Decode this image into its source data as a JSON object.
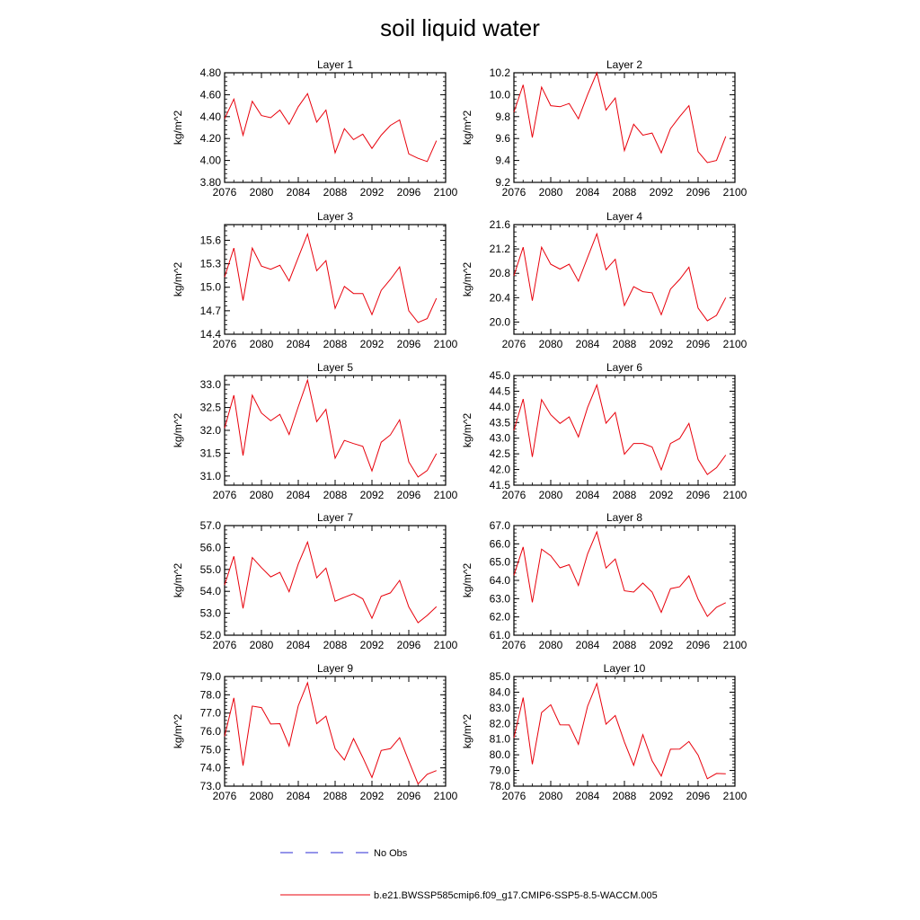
{
  "page_title": "soil liquid water",
  "legend": {
    "obs_label": "No Obs",
    "model_label": "b.e21.BWSSP585cmip6.f09_g17.CMIP6-SSP5-8.5-WACCM.005",
    "obs_color": "#2b2bd6",
    "model_color": "#e8000b"
  },
  "chart_data": [
    {
      "type": "line",
      "title": "Layer 1",
      "ylabel": "kg/m^2",
      "xlim": [
        2076,
        2100
      ],
      "ylim": [
        3.8,
        4.8
      ],
      "xticks": [
        "2076",
        "2080",
        "2084",
        "2088",
        "2092",
        "2096",
        "2100"
      ],
      "yticks": [
        "3.80",
        "4.00",
        "4.20",
        "4.40",
        "4.60",
        "4.80"
      ],
      "x": [
        2076,
        2077,
        2078,
        2079,
        2080,
        2081,
        2082,
        2083,
        2084,
        2085,
        2086,
        2087,
        2088,
        2089,
        2090,
        2091,
        2092,
        2093,
        2094,
        2095,
        2096,
        2097,
        2098,
        2099
      ],
      "series": [
        {
          "values": [
            4.38,
            4.56,
            4.23,
            4.54,
            4.41,
            4.39,
            4.46,
            4.33,
            4.49,
            4.61,
            4.35,
            4.46,
            4.07,
            4.29,
            4.19,
            4.24,
            4.11,
            4.23,
            4.32,
            4.37,
            4.06,
            4.02,
            3.99,
            4.18
          ]
        }
      ]
    },
    {
      "type": "line",
      "title": "Layer 2",
      "ylabel": "kg/m^2",
      "xlim": [
        2076,
        2100
      ],
      "ylim": [
        9.2,
        10.2
      ],
      "xticks": [
        "2076",
        "2080",
        "2084",
        "2088",
        "2092",
        "2096",
        "2100"
      ],
      "yticks": [
        "9.2",
        "9.4",
        "9.6",
        "9.8",
        "10.0",
        "10.2"
      ],
      "x": [
        2076,
        2077,
        2078,
        2079,
        2080,
        2081,
        2082,
        2083,
        2084,
        2085,
        2086,
        2087,
        2088,
        2089,
        2090,
        2091,
        2092,
        2093,
        2094,
        2095,
        2096,
        2097,
        2098,
        2099
      ],
      "series": [
        {
          "values": [
            9.84,
            10.09,
            9.61,
            10.07,
            9.9,
            9.89,
            9.92,
            9.78,
            10.0,
            10.2,
            9.86,
            9.97,
            9.49,
            9.73,
            9.63,
            9.65,
            9.47,
            9.69,
            9.8,
            9.9,
            9.48,
            9.38,
            9.4,
            9.62
          ]
        }
      ]
    },
    {
      "type": "line",
      "title": "Layer 3",
      "ylabel": "kg/m^2",
      "xlim": [
        2076,
        2100
      ],
      "ylim": [
        14.4,
        15.8
      ],
      "xticks": [
        "2076",
        "2080",
        "2084",
        "2088",
        "2092",
        "2096",
        "2100"
      ],
      "yticks": [
        "14.4",
        "14.7",
        "15.0",
        "15.3",
        "15.6"
      ],
      "x": [
        2076,
        2077,
        2078,
        2079,
        2080,
        2081,
        2082,
        2083,
        2084,
        2085,
        2086,
        2087,
        2088,
        2089,
        2090,
        2091,
        2092,
        2093,
        2094,
        2095,
        2096,
        2097,
        2098,
        2099
      ],
      "series": [
        {
          "values": [
            15.13,
            15.5,
            14.83,
            15.5,
            15.27,
            15.23,
            15.28,
            15.08,
            15.38,
            15.68,
            15.21,
            15.34,
            14.73,
            15.01,
            14.92,
            14.92,
            14.65,
            14.96,
            15.1,
            15.26,
            14.7,
            14.55,
            14.6,
            14.86
          ]
        }
      ]
    },
    {
      "type": "line",
      "title": "Layer 4",
      "ylabel": "kg/m^2",
      "xlim": [
        2076,
        2100
      ],
      "ylim": [
        19.8,
        21.6
      ],
      "xticks": [
        "2076",
        "2080",
        "2084",
        "2088",
        "2092",
        "2096",
        "2100"
      ],
      "yticks": [
        "20.0",
        "20.4",
        "20.8",
        "21.2",
        "21.6"
      ],
      "x": [
        2076,
        2077,
        2078,
        2079,
        2080,
        2081,
        2082,
        2083,
        2084,
        2085,
        2086,
        2087,
        2088,
        2089,
        2090,
        2091,
        2092,
        2093,
        2094,
        2095,
        2096,
        2097,
        2098,
        2099
      ],
      "series": [
        {
          "values": [
            20.76,
            21.23,
            20.35,
            21.23,
            20.95,
            20.87,
            20.95,
            20.67,
            21.06,
            21.45,
            20.86,
            21.03,
            20.27,
            20.58,
            20.5,
            20.48,
            20.12,
            20.54,
            20.7,
            20.9,
            20.23,
            20.02,
            20.11,
            20.4
          ]
        }
      ]
    },
    {
      "type": "line",
      "title": "Layer 5",
      "ylabel": "kg/m^2",
      "xlim": [
        2076,
        2100
      ],
      "ylim": [
        30.8,
        33.2
      ],
      "xticks": [
        "2076",
        "2080",
        "2084",
        "2088",
        "2092",
        "2096",
        "2100"
      ],
      "yticks": [
        "31.0",
        "31.5",
        "32.0",
        "32.5",
        "33.0"
      ],
      "x": [
        2076,
        2077,
        2078,
        2079,
        2080,
        2081,
        2082,
        2083,
        2084,
        2085,
        2086,
        2087,
        2088,
        2089,
        2090,
        2091,
        2092,
        2093,
        2094,
        2095,
        2096,
        2097,
        2098,
        2099
      ],
      "series": [
        {
          "values": [
            32.05,
            32.77,
            31.45,
            32.77,
            32.38,
            32.21,
            32.35,
            31.91,
            32.52,
            33.1,
            32.19,
            32.46,
            31.39,
            31.78,
            31.71,
            31.65,
            31.11,
            31.74,
            31.9,
            32.23,
            31.31,
            30.98,
            31.12,
            31.49
          ]
        }
      ]
    },
    {
      "type": "line",
      "title": "Layer 6",
      "ylabel": "kg/m^2",
      "xlim": [
        2076,
        2100
      ],
      "ylim": [
        41.5,
        45.0
      ],
      "xticks": [
        "2076",
        "2080",
        "2084",
        "2088",
        "2092",
        "2096",
        "2100"
      ],
      "yticks": [
        "41.5",
        "42.0",
        "42.5",
        "43.0",
        "43.5",
        "44.0",
        "44.5",
        "45.0"
      ],
      "x": [
        2076,
        2077,
        2078,
        2079,
        2080,
        2081,
        2082,
        2083,
        2084,
        2085,
        2086,
        2087,
        2088,
        2089,
        2090,
        2091,
        2092,
        2093,
        2094,
        2095,
        2096,
        2097,
        2098,
        2099
      ],
      "series": [
        {
          "values": [
            43.25,
            44.25,
            42.4,
            44.23,
            43.75,
            43.47,
            43.68,
            43.04,
            43.98,
            44.7,
            43.48,
            43.82,
            42.49,
            42.83,
            42.83,
            42.72,
            41.99,
            42.83,
            42.99,
            43.47,
            42.32,
            41.84,
            42.06,
            42.46
          ]
        }
      ]
    },
    {
      "type": "line",
      "title": "Layer 7",
      "ylabel": "kg/m^2",
      "xlim": [
        2076,
        2100
      ],
      "ylim": [
        52.0,
        57.0
      ],
      "xticks": [
        "2076",
        "2080",
        "2084",
        "2088",
        "2092",
        "2096",
        "2100"
      ],
      "yticks": [
        "52.0",
        "53.0",
        "54.0",
        "55.0",
        "56.0",
        "57.0"
      ],
      "x": [
        2076,
        2077,
        2078,
        2079,
        2080,
        2081,
        2082,
        2083,
        2084,
        2085,
        2086,
        2087,
        2088,
        2089,
        2090,
        2091,
        2092,
        2093,
        2094,
        2095,
        2096,
        2097,
        2098,
        2099
      ],
      "series": [
        {
          "values": [
            54.29,
            55.6,
            53.22,
            55.54,
            55.08,
            54.66,
            54.87,
            53.98,
            55.25,
            56.25,
            54.62,
            55.06,
            53.55,
            53.73,
            53.89,
            53.66,
            52.77,
            53.78,
            53.93,
            54.5,
            53.29,
            52.57,
            52.9,
            53.3
          ]
        }
      ]
    },
    {
      "type": "line",
      "title": "Layer 8",
      "ylabel": "kg/m^2",
      "xlim": [
        2076,
        2100
      ],
      "ylim": [
        61.0,
        67.0
      ],
      "xticks": [
        "2076",
        "2080",
        "2084",
        "2088",
        "2092",
        "2096",
        "2100"
      ],
      "yticks": [
        "61.0",
        "62.0",
        "63.0",
        "64.0",
        "65.0",
        "66.0",
        "67.0"
      ],
      "x": [
        2076,
        2077,
        2078,
        2079,
        2080,
        2081,
        2082,
        2083,
        2084,
        2085,
        2086,
        2087,
        2088,
        2089,
        2090,
        2091,
        2092,
        2093,
        2094,
        2095,
        2096,
        2097,
        2098,
        2099
      ],
      "series": [
        {
          "values": [
            64.28,
            65.83,
            62.8,
            65.71,
            65.35,
            64.69,
            64.86,
            63.72,
            65.45,
            66.65,
            64.68,
            65.17,
            63.43,
            63.36,
            63.85,
            63.36,
            62.25,
            63.55,
            63.65,
            64.25,
            62.97,
            62.03,
            62.53,
            62.78
          ]
        }
      ]
    },
    {
      "type": "line",
      "title": "Layer 9",
      "ylabel": "kg/m^2",
      "xlim": [
        2076,
        2100
      ],
      "ylim": [
        73.0,
        79.0
      ],
      "xticks": [
        "2076",
        "2080",
        "2084",
        "2088",
        "2092",
        "2096",
        "2100"
      ],
      "yticks": [
        "73.0",
        "74.0",
        "75.0",
        "76.0",
        "77.0",
        "78.0",
        "79.0"
      ],
      "x": [
        2076,
        2077,
        2078,
        2079,
        2080,
        2081,
        2082,
        2083,
        2084,
        2085,
        2086,
        2087,
        2088,
        2089,
        2090,
        2091,
        2092,
        2093,
        2094,
        2095,
        2096,
        2097,
        2098,
        2099
      ],
      "series": [
        {
          "values": [
            75.73,
            77.83,
            74.12,
            77.38,
            77.3,
            76.4,
            76.42,
            75.2,
            77.4,
            78.66,
            76.42,
            76.83,
            75.05,
            74.43,
            75.6,
            74.57,
            73.47,
            74.95,
            75.05,
            75.65,
            74.37,
            73.12,
            73.65,
            73.85
          ]
        }
      ]
    },
    {
      "type": "line",
      "title": "Layer 10",
      "ylabel": "kg/m^2",
      "xlim": [
        2076,
        2100
      ],
      "ylim": [
        78.0,
        85.0
      ],
      "xticks": [
        "2076",
        "2080",
        "2084",
        "2088",
        "2092",
        "2096",
        "2100"
      ],
      "yticks": [
        "78.0",
        "79.0",
        "80.0",
        "81.0",
        "82.0",
        "83.0",
        "84.0",
        "85.0"
      ],
      "x": [
        2076,
        2077,
        2078,
        2079,
        2080,
        2081,
        2082,
        2083,
        2084,
        2085,
        2086,
        2087,
        2088,
        2089,
        2090,
        2091,
        2092,
        2093,
        2094,
        2095,
        2096,
        2097,
        2098,
        2099
      ],
      "series": [
        {
          "values": [
            81.08,
            83.65,
            79.4,
            82.7,
            83.2,
            81.92,
            81.91,
            80.67,
            83.1,
            84.55,
            81.96,
            82.51,
            80.82,
            79.33,
            81.29,
            79.62,
            78.64,
            80.36,
            80.37,
            80.85,
            79.98,
            78.47,
            78.81,
            78.79
          ]
        }
      ]
    }
  ]
}
